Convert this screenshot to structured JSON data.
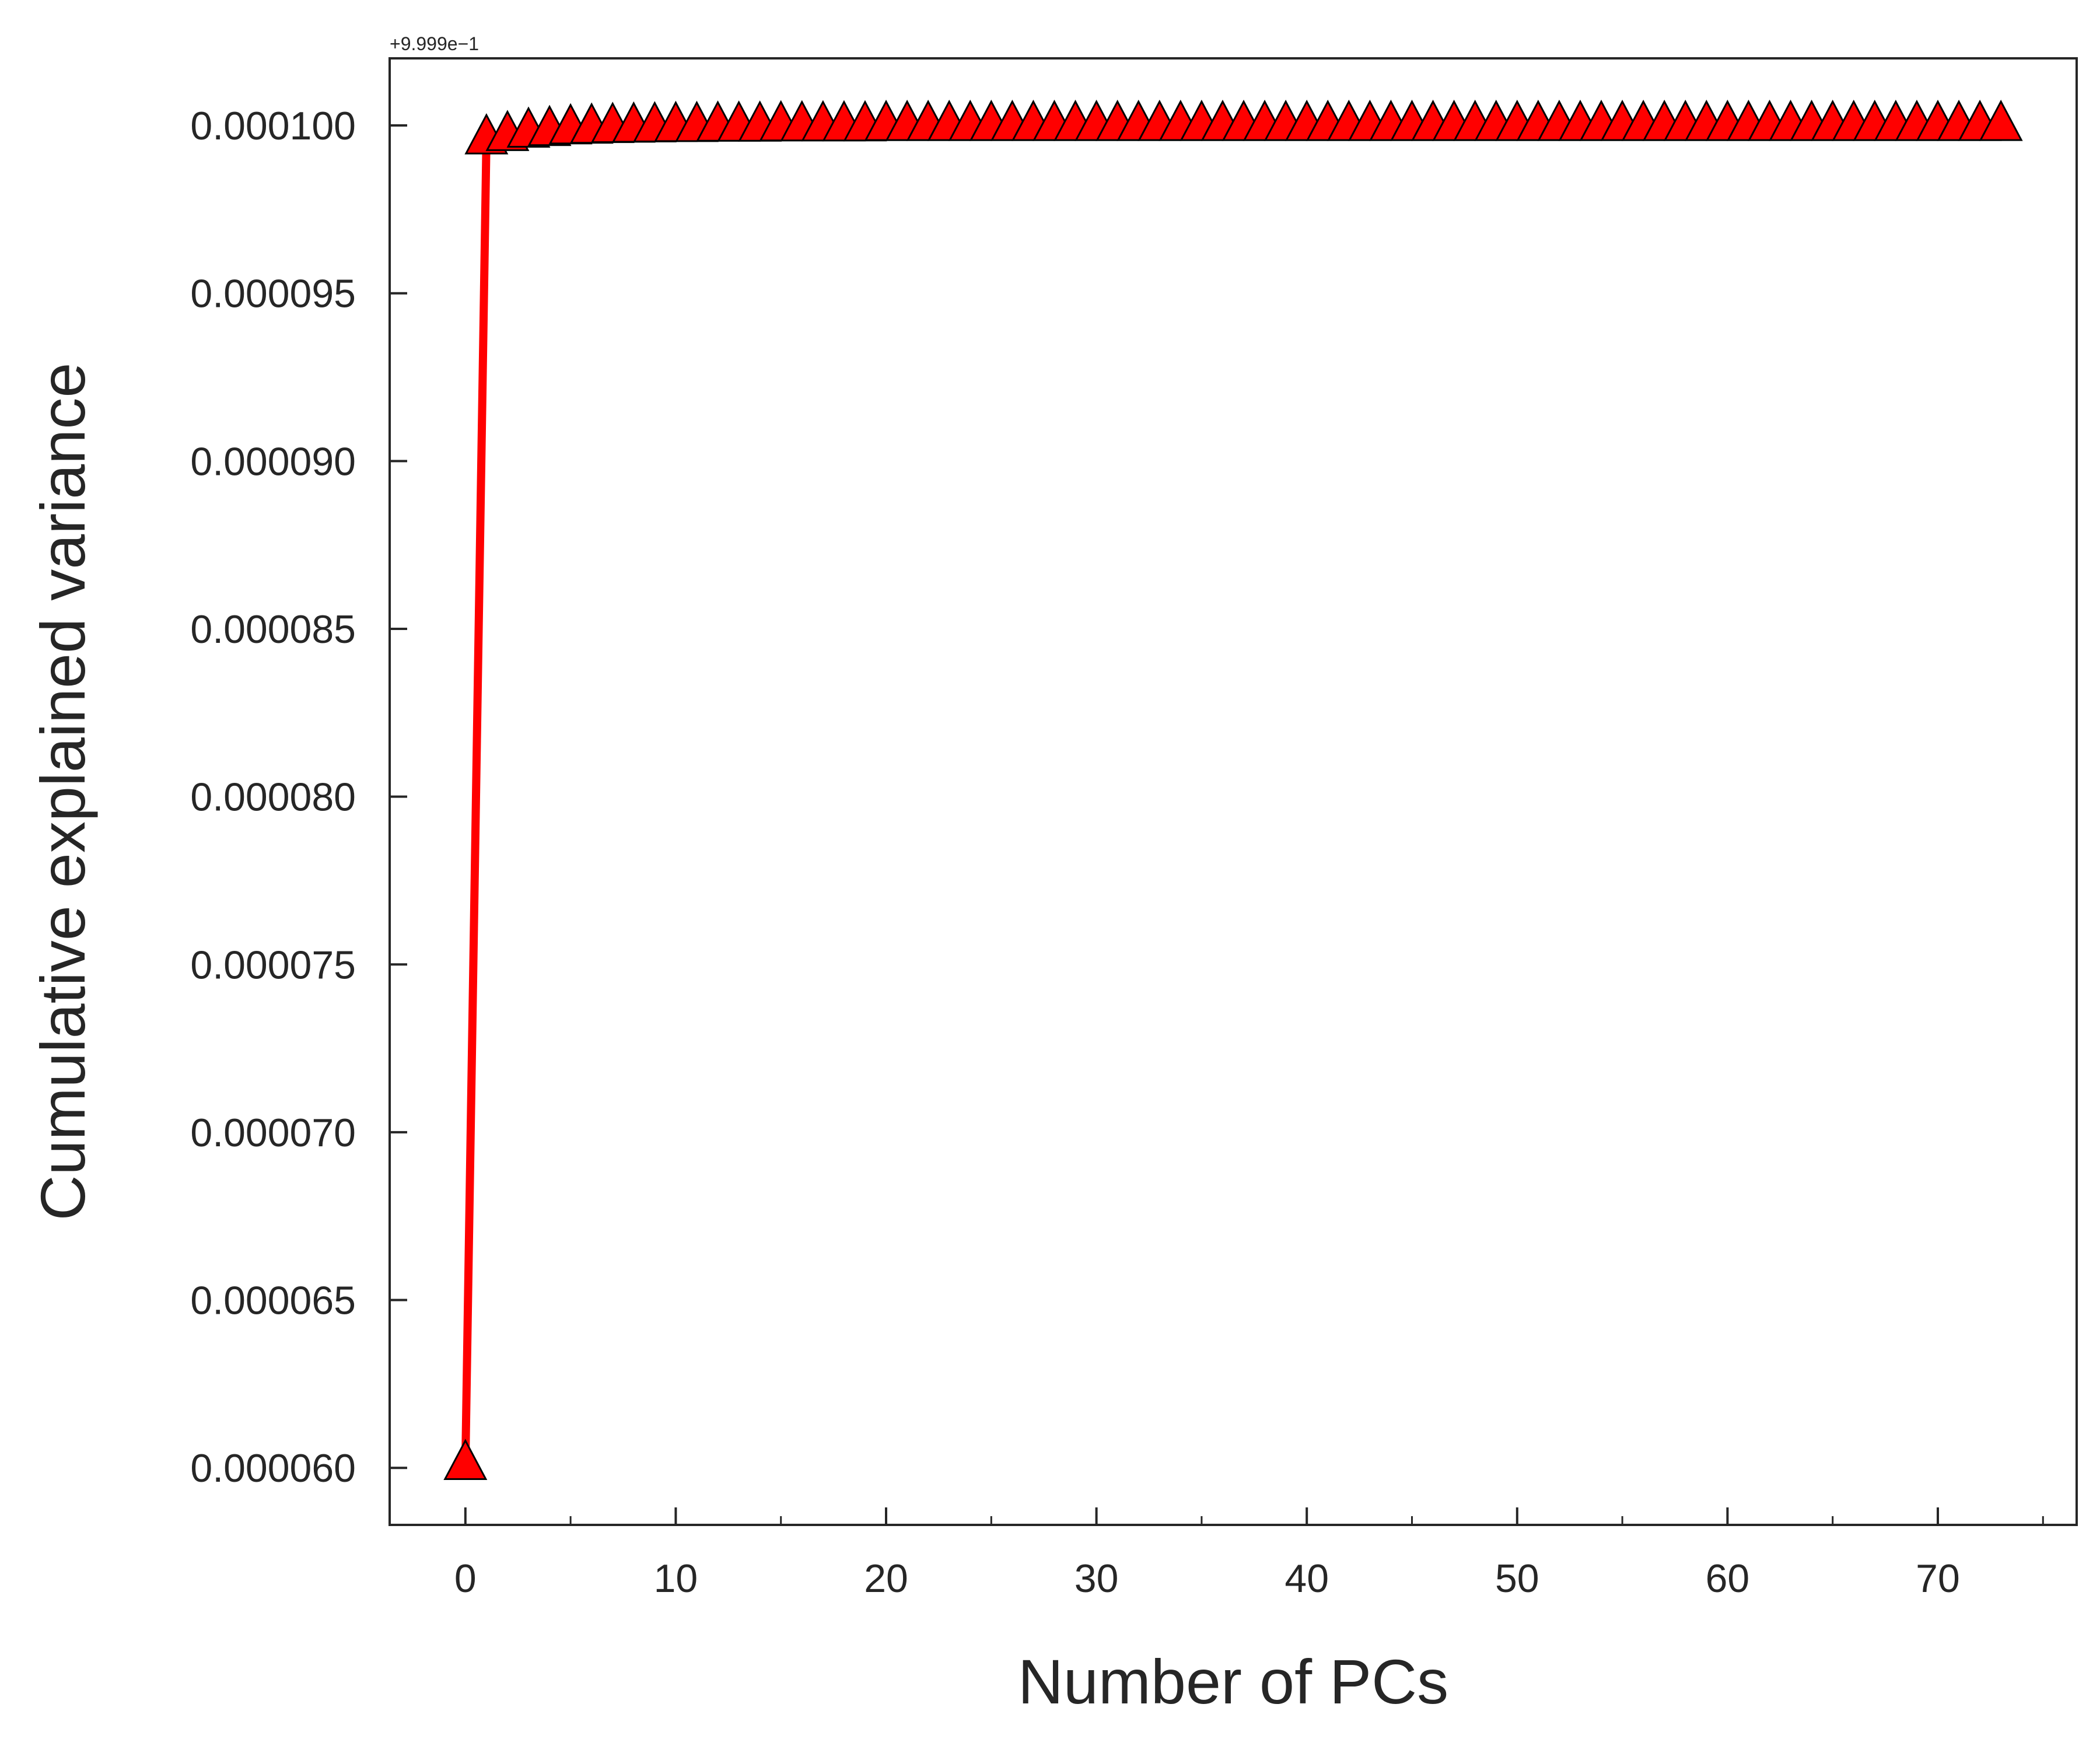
{
  "chart_data": {
    "type": "line",
    "title": "",
    "xlabel": "Number of PCs",
    "ylabel": "Cumulative explained variance",
    "y_offset_label": "+9.999e−1",
    "xlim": [
      -3.6,
      76.6
    ],
    "ylim": [
      5.83e-05,
      0.000102
    ],
    "x_ticks": [
      0,
      10,
      20,
      30,
      40,
      50,
      60,
      70
    ],
    "x_minor_ticks": [
      5,
      15,
      25,
      35,
      45,
      55,
      65,
      75
    ],
    "y_ticks": [
      6e-05,
      6.5e-05,
      7e-05,
      7.5e-05,
      8e-05,
      8.5e-05,
      9e-05,
      9.5e-05,
      0.0001
    ],
    "y_tick_labels": [
      "0.000060",
      "0.000065",
      "0.000070",
      "0.000075",
      "0.000080",
      "0.000085",
      "0.000090",
      "0.000095",
      "0.000100"
    ],
    "grid": false,
    "series": [
      {
        "color": "#ff0000",
        "marker": "triangle",
        "marker_edge_color": "#000000",
        "x": [
          0,
          1,
          2,
          3,
          4,
          5,
          6,
          7,
          8,
          9,
          10,
          11,
          12,
          13,
          14,
          15,
          16,
          17,
          18,
          19,
          20,
          21,
          22,
          23,
          24,
          25,
          26,
          27,
          28,
          29,
          30,
          31,
          32,
          33,
          34,
          35,
          36,
          37,
          38,
          39,
          40,
          41,
          42,
          43,
          44,
          45,
          46,
          47,
          48,
          49,
          50,
          51,
          52,
          53,
          54,
          55,
          56,
          57,
          58,
          59,
          60,
          61,
          62,
          63,
          64,
          65,
          66,
          67,
          68,
          69,
          70,
          71,
          72,
          73
        ],
        "values": [
          6.01e-05,
          9.96e-05,
          9.97e-05,
          9.98e-05,
          9.985e-05,
          9.99e-05,
          9.992e-05,
          9.994e-05,
          9.995e-05,
          9.996e-05,
          9.997e-05,
          9.997e-05,
          9.998e-05,
          9.998e-05,
          9.998e-05,
          9.999e-05,
          9.999e-05,
          9.999e-05,
          9.999e-05,
          9.999e-05,
          0.0001,
          0.0001,
          0.0001,
          0.0001,
          0.0001,
          0.0001,
          0.0001,
          0.0001,
          0.0001,
          0.0001,
          0.0001,
          0.0001,
          0.0001,
          0.0001,
          0.0001,
          0.0001,
          0.0001,
          0.0001,
          0.0001,
          0.0001,
          0.0001,
          0.0001,
          0.0001,
          0.0001,
          0.0001,
          0.0001,
          0.0001,
          0.0001,
          0.0001,
          0.0001,
          0.0001,
          0.0001,
          0.0001,
          0.0001,
          0.0001,
          0.0001,
          0.0001,
          0.0001,
          0.0001,
          0.0001,
          0.0001,
          0.0001,
          0.0001,
          0.0001,
          0.0001,
          0.0001,
          0.0001,
          0.0001,
          0.0001,
          0.0001,
          0.0001,
          0.0001,
          0.0001,
          0.0001
        ]
      }
    ]
  }
}
